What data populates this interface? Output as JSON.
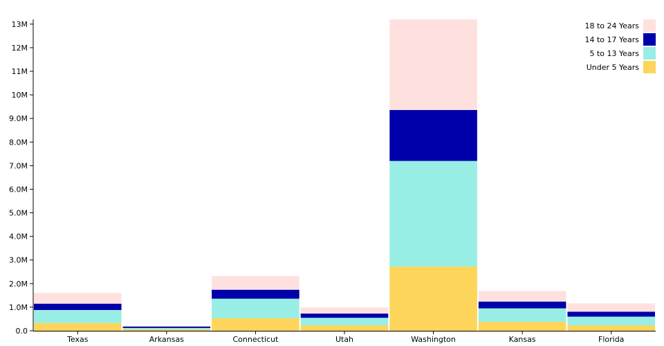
{
  "chart_data": {
    "type": "bar",
    "stacked": true,
    "categories": [
      "Texas",
      "Arkansas",
      "Connecticut",
      "Utah",
      "Washington",
      "Kansas",
      "Florida"
    ],
    "series": [
      {
        "name": "Under 5 Years",
        "color": "#fcd55a",
        "values": [
          330000,
          60000,
          530000,
          230000,
          2720000,
          380000,
          230000
        ]
      },
      {
        "name": "5 to 13 Years",
        "color": "#98eee4",
        "values": [
          550000,
          60000,
          830000,
          320000,
          4480000,
          570000,
          370000
        ]
      },
      {
        "name": "14 to 17 Years",
        "color": "#0000aa",
        "values": [
          270000,
          60000,
          380000,
          180000,
          2160000,
          290000,
          210000
        ]
      },
      {
        "name": "18 to 24 Years",
        "color": "#fee1df",
        "values": [
          450000,
          30000,
          580000,
          260000,
          3840000,
          450000,
          350000
        ]
      }
    ],
    "legend_order": [
      "18 to 24 Years",
      "14 to 17 Years",
      "5 to 13 Years",
      "Under 5 Years"
    ],
    "legend_position": "top-right",
    "y_ticks": [
      0,
      1000000,
      2000000,
      3000000,
      4000000,
      5000000,
      6000000,
      7000000,
      8000000,
      9000000,
      10000000,
      11000000,
      12000000,
      13000000
    ],
    "y_tick_labels": [
      "0.0",
      "1.0M",
      "2.0M",
      "3.0M",
      "4.0M",
      "5.0M",
      "6.0M",
      "7.0M",
      "8.0M",
      "9.0M",
      "10M",
      "11M",
      "12M",
      "13M"
    ],
    "ylim": [
      0,
      13200000
    ],
    "grid": false,
    "title": "",
    "xlabel": "",
    "ylabel": ""
  }
}
